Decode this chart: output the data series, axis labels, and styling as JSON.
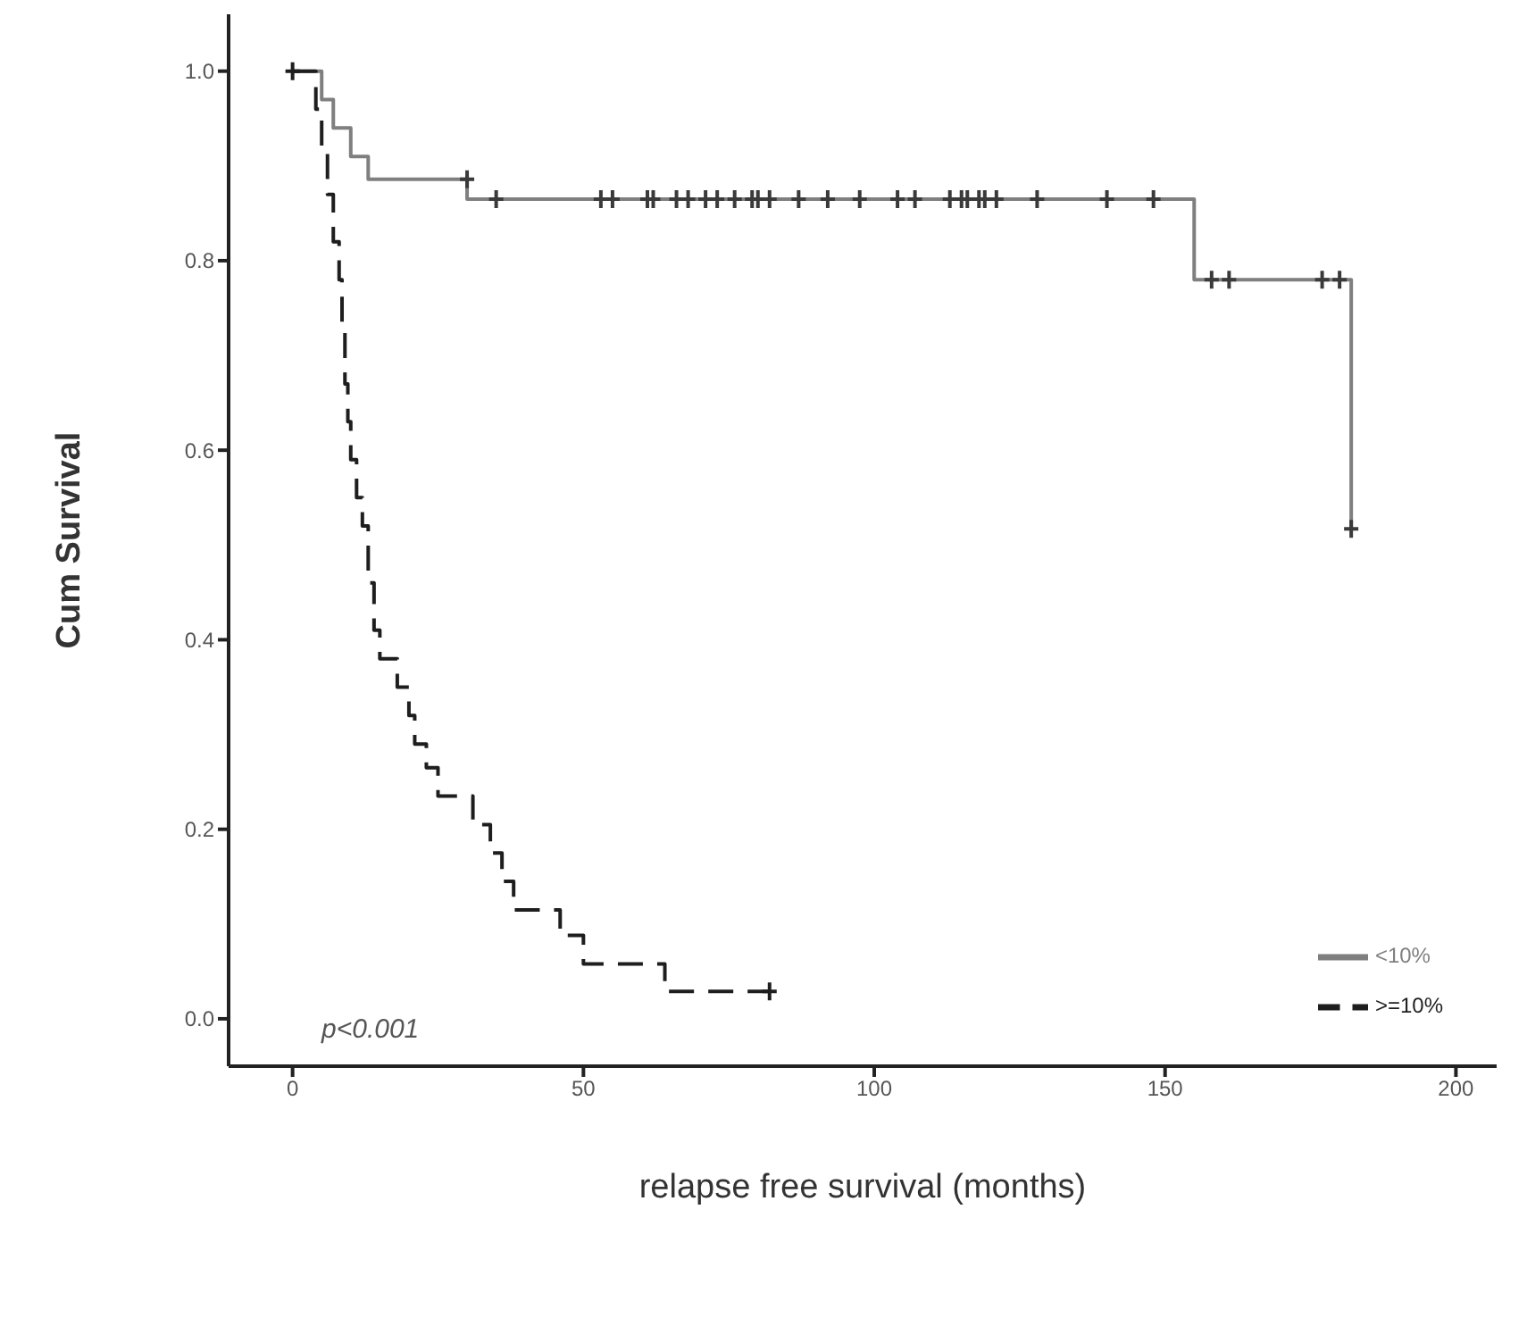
{
  "chart_data": {
    "type": "step",
    "xlabel": "relapse free survival (months)",
    "ylabel": "Cum Survival",
    "annotations": [
      "p<0.001"
    ],
    "xlim": [
      -11,
      207
    ],
    "xticks": [
      0,
      50,
      100,
      150,
      200
    ],
    "ylim": [
      -0.05,
      1.06
    ],
    "yticks": [
      {
        "value": 0,
        "label": "0.0"
      },
      {
        "value": 0.2,
        "label": "0.2"
      },
      {
        "value": 0.4,
        "label": "0.4"
      },
      {
        "value": 0.6,
        "label": "0.6"
      },
      {
        "value": 0.8,
        "label": "0.8"
      },
      {
        "value": 1,
        "label": "1.0"
      }
    ],
    "legend": "bottom right",
    "series": [
      {
        "name": "<10%",
        "color": "#7f7f7f",
        "line_style": "solid",
        "x": [
          0,
          5,
          7,
          10,
          13,
          30,
          155,
          182
        ],
        "values": [
          1,
          0.97,
          0.94,
          0.91,
          0.886,
          0.865,
          0.78,
          0.517
        ]
      },
      {
        "name": ">=10%",
        "color": "#1e1e1e",
        "line_style": "dashed",
        "x": [
          0,
          4,
          5,
          6,
          7,
          8,
          8.5,
          9,
          9.5,
          10,
          11,
          12,
          13,
          14,
          15,
          18,
          20,
          21,
          23,
          25,
          31,
          34,
          36,
          38,
          46,
          50,
          64,
          82
        ],
        "values": [
          1,
          0.96,
          0.92,
          0.87,
          0.82,
          0.78,
          0.73,
          0.67,
          0.63,
          0.59,
          0.55,
          0.52,
          0.46,
          0.41,
          0.38,
          0.35,
          0.32,
          0.29,
          0.265,
          0.235,
          0.205,
          0.175,
          0.145,
          0.115,
          0.088,
          0.058,
          0.029,
          0.029
        ]
      },
      {
        "type": "scatter",
        "marker": "cross",
        "color": "#3a3a3a",
        "x": [
          30,
          35,
          53,
          55,
          61,
          62,
          66,
          68,
          71,
          73,
          76,
          79,
          80,
          82,
          87,
          92,
          97.5,
          104,
          107,
          113,
          115,
          116,
          118,
          119,
          121,
          128,
          140,
          148,
          158,
          161,
          177,
          180,
          182
        ],
        "values": [
          0.886,
          0.865,
          0.865,
          0.865,
          0.865,
          0.865,
          0.865,
          0.865,
          0.865,
          0.865,
          0.865,
          0.865,
          0.865,
          0.865,
          0.865,
          0.865,
          0.865,
          0.865,
          0.865,
          0.865,
          0.865,
          0.865,
          0.865,
          0.865,
          0.865,
          0.865,
          0.865,
          0.865,
          0.78,
          0.78,
          0.78,
          0.78,
          0.517
        ]
      },
      {
        "type": "scatter",
        "marker": "cross",
        "color": "#1e1e1e",
        "x": [
          0,
          82
        ],
        "values": [
          1,
          0.029
        ]
      }
    ]
  }
}
